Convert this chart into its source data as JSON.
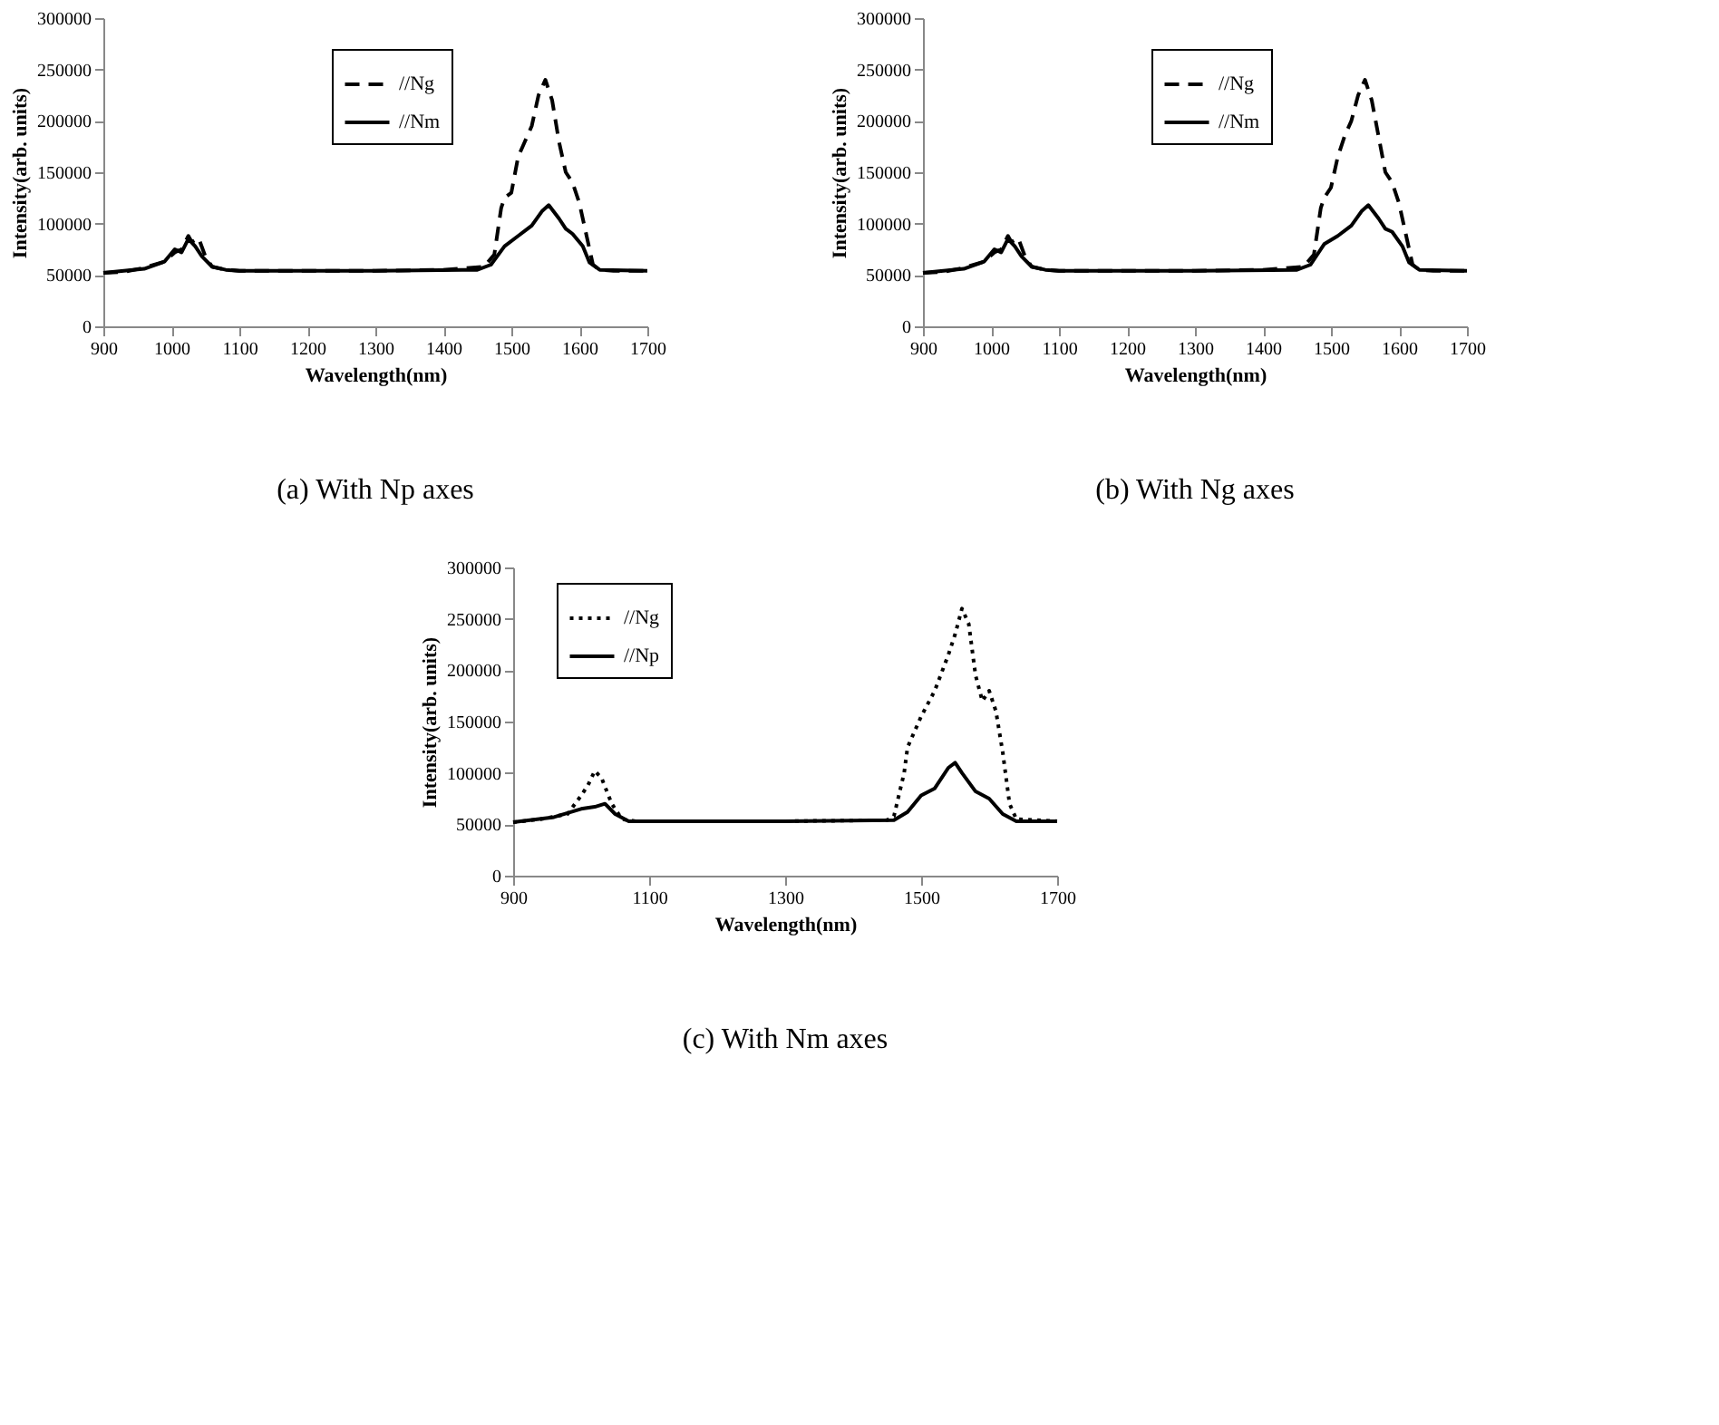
{
  "chart_data": [
    {
      "type": "line",
      "title": "(a)    With Np axes",
      "xlabel": "Wavelength(nm)",
      "ylabel": "Intensity(arb. units)",
      "xlim": [
        900,
        1700
      ],
      "xticks": [
        900,
        1000,
        1100,
        1200,
        1300,
        1400,
        1500,
        1600,
        1700
      ],
      "ylim": [
        0,
        300000
      ],
      "yticks": [
        0,
        50000,
        100000,
        150000,
        200000,
        250000,
        300000
      ],
      "grid": false,
      "legend": "top",
      "series": [
        {
          "name": "//Ng",
          "color": "#000000",
          "line_style": "dashed",
          "x": [
            900,
            930,
            960,
            990,
            1005,
            1015,
            1025,
            1030,
            1040,
            1050,
            1060,
            1080,
            1100,
            1200,
            1300,
            1400,
            1460,
            1475,
            1485,
            1490,
            1500,
            1510,
            1520,
            1530,
            1540,
            1550,
            1560,
            1570,
            1580,
            1590,
            1600,
            1610,
            1620,
            1630,
            1650,
            1700
          ],
          "values": [
            52000,
            53000,
            57000,
            63000,
            72000,
            75000,
            88000,
            82000,
            86000,
            68000,
            58000,
            55000,
            54000,
            54000,
            54000,
            55000,
            58000,
            70000,
            115000,
            125000,
            130000,
            165000,
            180000,
            195000,
            225000,
            240000,
            220000,
            180000,
            150000,
            140000,
            120000,
            90000,
            60000,
            55000,
            54000,
            54000
          ]
        },
        {
          "name": "//Nm",
          "color": "#000000",
          "line_style": "solid",
          "x": [
            900,
            960,
            990,
            1005,
            1015,
            1025,
            1035,
            1045,
            1060,
            1080,
            1100,
            1300,
            1450,
            1470,
            1490,
            1510,
            1530,
            1545,
            1555,
            1570,
            1580,
            1590,
            1605,
            1615,
            1630,
            1700
          ],
          "values": [
            52000,
            56000,
            63000,
            75000,
            72000,
            85000,
            78000,
            68000,
            58000,
            55000,
            54000,
            54000,
            55000,
            60000,
            78000,
            88000,
            98000,
            112000,
            118000,
            105000,
            95000,
            90000,
            78000,
            62000,
            55000,
            54000
          ]
        }
      ]
    },
    {
      "type": "line",
      "title": "(b)    With Ng axes",
      "xlabel": "Wavelength(nm)",
      "ylabel": "Intensity(arb. units)",
      "xlim": [
        900,
        1700
      ],
      "xticks": [
        900,
        1000,
        1100,
        1200,
        1300,
        1400,
        1500,
        1600,
        1700
      ],
      "ylim": [
        0,
        300000
      ],
      "yticks": [
        0,
        50000,
        100000,
        150000,
        200000,
        250000,
        300000
      ],
      "grid": false,
      "legend": "top",
      "series": [
        {
          "name": "//Ng",
          "color": "#000000",
          "line_style": "dashed",
          "x": [
            900,
            930,
            960,
            990,
            1005,
            1015,
            1025,
            1030,
            1040,
            1050,
            1060,
            1080,
            1100,
            1200,
            1300,
            1400,
            1460,
            1475,
            1485,
            1490,
            1500,
            1510,
            1520,
            1530,
            1540,
            1550,
            1560,
            1570,
            1580,
            1590,
            1600,
            1610,
            1620,
            1630,
            1650,
            1700
          ],
          "values": [
            52000,
            53000,
            57000,
            63000,
            72000,
            75000,
            88000,
            82000,
            86000,
            68000,
            58000,
            55000,
            54000,
            54000,
            54000,
            55000,
            58000,
            70000,
            115000,
            125000,
            135000,
            165000,
            185000,
            200000,
            225000,
            240000,
            220000,
            185000,
            150000,
            140000,
            120000,
            90000,
            60000,
            55000,
            54000,
            54000
          ]
        },
        {
          "name": "//Nm",
          "color": "#000000",
          "line_style": "solid",
          "x": [
            900,
            960,
            990,
            1005,
            1015,
            1025,
            1035,
            1045,
            1060,
            1080,
            1100,
            1300,
            1450,
            1470,
            1490,
            1510,
            1530,
            1545,
            1555,
            1570,
            1580,
            1590,
            1605,
            1615,
            1630,
            1700
          ],
          "values": [
            52000,
            56000,
            63000,
            75000,
            72000,
            85000,
            78000,
            68000,
            58000,
            55000,
            54000,
            54000,
            55000,
            60000,
            80000,
            88000,
            98000,
            112000,
            118000,
            105000,
            95000,
            92000,
            78000,
            62000,
            55000,
            54000
          ]
        }
      ]
    },
    {
      "type": "line",
      "title": "(c)    With Nm axes",
      "xlabel": "Wavelength(nm)",
      "ylabel": "Intensity(arb. units)",
      "xlim": [
        900,
        1700
      ],
      "xticks": [
        900,
        1100,
        1300,
        1500,
        1700
      ],
      "ylim": [
        0,
        300000
      ],
      "yticks": [
        0,
        50000,
        100000,
        150000,
        200000,
        250000,
        300000
      ],
      "grid": false,
      "legend": "top left",
      "series": [
        {
          "name": "//Ng",
          "color": "#000000",
          "line_style": "dotted",
          "x": [
            900,
            940,
            980,
            1000,
            1010,
            1020,
            1030,
            1045,
            1060,
            1080,
            1300,
            1450,
            1460,
            1475,
            1480,
            1500,
            1520,
            1540,
            1550,
            1560,
            1570,
            1580,
            1590,
            1600,
            1610,
            1620,
            1630,
            1640,
            1700
          ],
          "values": [
            52000,
            55000,
            60000,
            78000,
            88000,
            102000,
            95000,
            70000,
            55000,
            53000,
            53000,
            54000,
            58000,
            100000,
            125000,
            155000,
            180000,
            215000,
            235000,
            260000,
            245000,
            195000,
            170000,
            180000,
            160000,
            120000,
            70000,
            55000,
            53000
          ]
        },
        {
          "name": "//Np",
          "color": "#000000",
          "line_style": "solid",
          "x": [
            900,
            960,
            1000,
            1020,
            1035,
            1050,
            1070,
            1300,
            1460,
            1480,
            1500,
            1520,
            1540,
            1550,
            1560,
            1580,
            1600,
            1620,
            1640,
            1700
          ],
          "values": [
            52000,
            57000,
            65000,
            67000,
            70000,
            60000,
            53000,
            53000,
            54000,
            62000,
            78000,
            85000,
            105000,
            110000,
            100000,
            82000,
            75000,
            60000,
            53000,
            53000
          ]
        }
      ]
    }
  ]
}
